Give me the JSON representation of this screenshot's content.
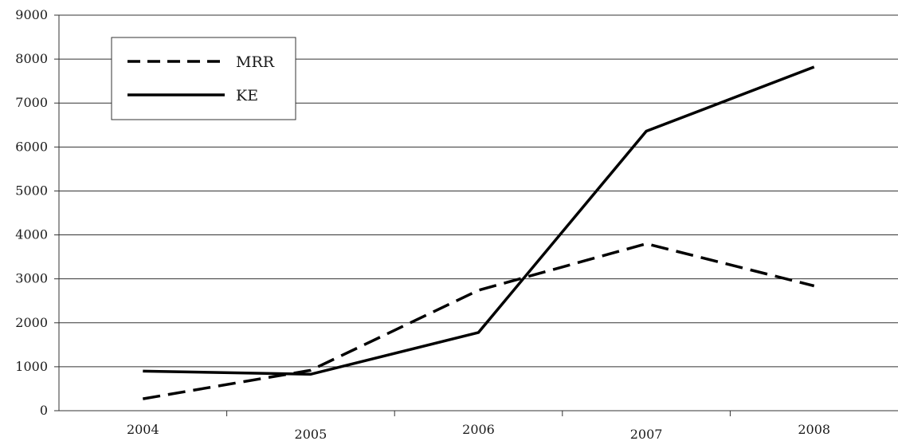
{
  "chart_data": {
    "type": "line",
    "title": "",
    "xlabel": "",
    "ylabel": "",
    "categories": [
      "2004",
      "2005",
      "2006",
      "2007",
      "2008"
    ],
    "y_ticks": [
      "0",
      "1000",
      "2000",
      "3000",
      "4000",
      "5000",
      "6000",
      "7000",
      "8000",
      "9000"
    ],
    "ylim": [
      0,
      9000
    ],
    "grid": "horizontal",
    "legend_position": "top-left",
    "series": [
      {
        "name": "MRR",
        "style": "dashed",
        "color": "#000000",
        "values": [
          270,
          920,
          2740,
          3800,
          2840
        ]
      },
      {
        "name": "KE",
        "style": "solid",
        "color": "#000000",
        "values": [
          900,
          830,
          1780,
          6360,
          7820
        ]
      }
    ]
  }
}
